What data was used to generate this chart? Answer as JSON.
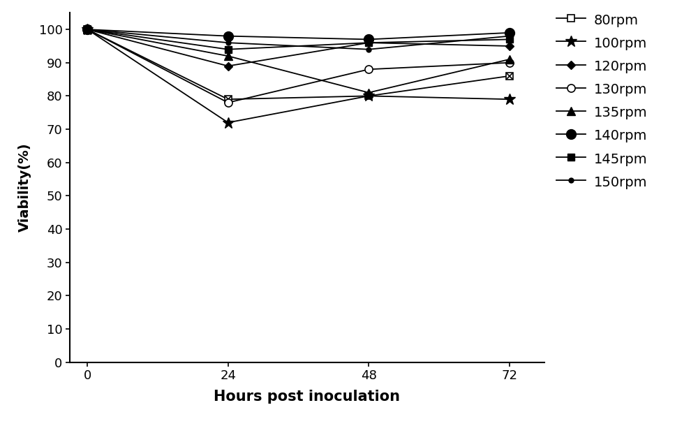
{
  "x": [
    0,
    24,
    48,
    72
  ],
  "series": [
    {
      "label": "80rpm",
      "values": [
        100,
        79,
        80,
        86
      ],
      "marker": "s",
      "mfc": "white",
      "mec": "black",
      "ms": 7,
      "mew": 1.2,
      "cross": true
    },
    {
      "label": "100rpm",
      "values": [
        100,
        72,
        80,
        79
      ],
      "marker": "*",
      "mfc": "black",
      "mec": "black",
      "ms": 12,
      "mew": 1.0,
      "cross": false
    },
    {
      "label": "120rpm",
      "values": [
        100,
        89,
        96,
        95
      ],
      "marker": "D",
      "mfc": "black",
      "mec": "black",
      "ms": 6,
      "mew": 1.0,
      "cross": false
    },
    {
      "label": "130rpm",
      "values": [
        100,
        78,
        88,
        90
      ],
      "marker": "o",
      "mfc": "white",
      "mec": "black",
      "ms": 8,
      "mew": 1.2,
      "cross": false
    },
    {
      "label": "135rpm",
      "values": [
        100,
        92,
        81,
        91
      ],
      "marker": "^",
      "mfc": "black",
      "mec": "black",
      "ms": 8,
      "mew": 1.0,
      "cross": false
    },
    {
      "label": "140rpm",
      "values": [
        100,
        98,
        97,
        99
      ],
      "marker": "o",
      "mfc": "black",
      "mec": "black",
      "ms": 10,
      "mew": 1.0,
      "cross": false
    },
    {
      "label": "145rpm",
      "values": [
        100,
        94,
        96,
        97
      ],
      "marker": "s",
      "mfc": "black",
      "mec": "black",
      "ms": 7,
      "mew": 1.0,
      "cross": false
    },
    {
      "label": "150rpm",
      "values": [
        100,
        96,
        94,
        98
      ],
      "marker": "o",
      "mfc": "black",
      "mec": "black",
      "ms": 5,
      "mew": 1.0,
      "cross": false
    }
  ],
  "legend_markers": [
    {
      "label": "80rpm",
      "marker": "s",
      "mfc": "white",
      "mec": "black",
      "ms": 7,
      "mew": 1.2,
      "cross": true
    },
    {
      "label": "100rpm",
      "marker": "*",
      "mfc": "black",
      "mec": "black",
      "ms": 12,
      "mew": 1.0,
      "cross": false
    },
    {
      "label": "120rpm",
      "marker": "D",
      "mfc": "black",
      "mec": "black",
      "ms": 6,
      "mew": 1.0,
      "cross": false
    },
    {
      "label": "130rpm",
      "marker": "o",
      "mfc": "white",
      "mec": "black",
      "ms": 8,
      "mew": 1.2,
      "cross": false
    },
    {
      "label": "135rpm",
      "marker": "^",
      "mfc": "black",
      "mec": "black",
      "ms": 8,
      "mew": 1.0,
      "cross": false
    },
    {
      "label": "140rpm",
      "marker": "o",
      "mfc": "black",
      "mec": "black",
      "ms": 10,
      "mew": 1.0,
      "cross": false
    },
    {
      "label": "145rpm",
      "marker": "s",
      "mfc": "black",
      "mec": "black",
      "ms": 7,
      "mew": 1.0,
      "cross": false
    },
    {
      "label": "150rpm",
      "marker": "o",
      "mfc": "black",
      "mec": "black",
      "ms": 5,
      "mew": 1.0,
      "cross": false
    }
  ],
  "xlabel": "Hours post inoculation",
  "ylabel": "Viability(%)",
  "ylim": [
    0,
    105
  ],
  "yticks": [
    0,
    10,
    20,
    30,
    40,
    50,
    60,
    70,
    80,
    90,
    100
  ],
  "xticks": [
    0,
    24,
    48,
    72
  ],
  "xlim": [
    -3,
    78
  ],
  "color": "#000000",
  "linewidth": 1.3,
  "background_color": "#ffffff",
  "xlabel_fontsize": 15,
  "ylabel_fontsize": 14,
  "tick_fontsize": 13,
  "legend_fontsize": 14
}
